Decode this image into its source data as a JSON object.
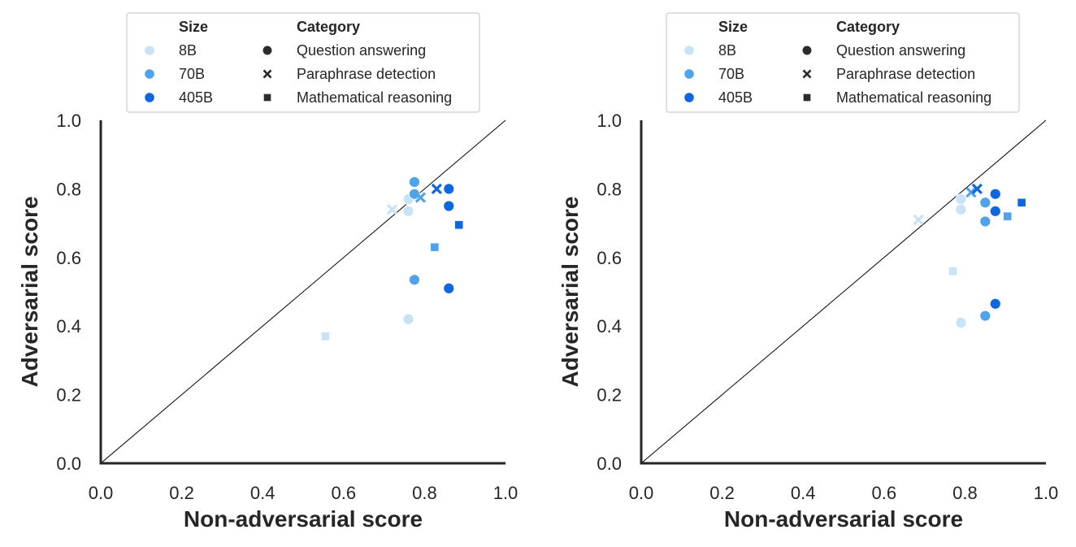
{
  "colors": {
    "8B": "#c6e3f7",
    "70B": "#4ea3ec",
    "405B": "#0e66e0",
    "legend_shape": "#2b2b2b"
  },
  "legend": {
    "size_title": "Size",
    "category_title": "Category",
    "sizes": [
      "8B",
      "70B",
      "405B"
    ],
    "categories": [
      {
        "label": "Question answering",
        "marker": "circle"
      },
      {
        "label": "Paraphrase detection",
        "marker": "x"
      },
      {
        "label": "Mathematical reasoning",
        "marker": "square"
      }
    ]
  },
  "chart_data": [
    {
      "type": "scatter",
      "xlabel": "Non-adversarial score",
      "ylabel": "Adversarial score",
      "xlim": [
        0.0,
        1.0
      ],
      "ylim": [
        0.0,
        1.0
      ],
      "xticks": [
        "0.0",
        "0.2",
        "0.4",
        "0.6",
        "0.8",
        "1.0"
      ],
      "yticks": [
        "0.0",
        "0.2",
        "0.4",
        "0.6",
        "0.8",
        "1.0"
      ],
      "reference_line": "y = x",
      "grid": false,
      "legend_position": "top",
      "points": [
        {
          "size": "8B",
          "category": "Question answering",
          "x": 0.76,
          "y": 0.77
        },
        {
          "size": "8B",
          "category": "Question answering",
          "x": 0.76,
          "y": 0.735
        },
        {
          "size": "8B",
          "category": "Question answering",
          "x": 0.76,
          "y": 0.42
        },
        {
          "size": "8B",
          "category": "Paraphrase detection",
          "x": 0.72,
          "y": 0.74
        },
        {
          "size": "8B",
          "category": "Mathematical reasoning",
          "x": 0.555,
          "y": 0.37
        },
        {
          "size": "70B",
          "category": "Question answering",
          "x": 0.775,
          "y": 0.82
        },
        {
          "size": "70B",
          "category": "Question answering",
          "x": 0.775,
          "y": 0.785
        },
        {
          "size": "70B",
          "category": "Question answering",
          "x": 0.775,
          "y": 0.535
        },
        {
          "size": "70B",
          "category": "Paraphrase detection",
          "x": 0.79,
          "y": 0.775
        },
        {
          "size": "70B",
          "category": "Mathematical reasoning",
          "x": 0.825,
          "y": 0.63
        },
        {
          "size": "405B",
          "category": "Question answering",
          "x": 0.86,
          "y": 0.8
        },
        {
          "size": "405B",
          "category": "Question answering",
          "x": 0.86,
          "y": 0.75
        },
        {
          "size": "405B",
          "category": "Question answering",
          "x": 0.86,
          "y": 0.51
        },
        {
          "size": "405B",
          "category": "Paraphrase detection",
          "x": 0.83,
          "y": 0.8
        },
        {
          "size": "405B",
          "category": "Mathematical reasoning",
          "x": 0.885,
          "y": 0.695
        }
      ]
    },
    {
      "type": "scatter",
      "xlabel": "Non-adversarial score",
      "ylabel": "Adversarial score",
      "xlim": [
        0.0,
        1.0
      ],
      "ylim": [
        0.0,
        1.0
      ],
      "xticks": [
        "0.0",
        "0.2",
        "0.4",
        "0.6",
        "0.8",
        "1.0"
      ],
      "yticks": [
        "0.0",
        "0.2",
        "0.4",
        "0.6",
        "0.8",
        "1.0"
      ],
      "reference_line": "y = x",
      "grid": false,
      "legend_position": "top",
      "points": [
        {
          "size": "8B",
          "category": "Question answering",
          "x": 0.79,
          "y": 0.77
        },
        {
          "size": "8B",
          "category": "Question answering",
          "x": 0.79,
          "y": 0.74
        },
        {
          "size": "8B",
          "category": "Question answering",
          "x": 0.79,
          "y": 0.41
        },
        {
          "size": "8B",
          "category": "Paraphrase detection",
          "x": 0.685,
          "y": 0.71
        },
        {
          "size": "8B",
          "category": "Mathematical reasoning",
          "x": 0.77,
          "y": 0.56
        },
        {
          "size": "70B",
          "category": "Question answering",
          "x": 0.85,
          "y": 0.76
        },
        {
          "size": "70B",
          "category": "Question answering",
          "x": 0.85,
          "y": 0.705
        },
        {
          "size": "70B",
          "category": "Question answering",
          "x": 0.85,
          "y": 0.43
        },
        {
          "size": "70B",
          "category": "Paraphrase detection",
          "x": 0.815,
          "y": 0.79
        },
        {
          "size": "70B",
          "category": "Mathematical reasoning",
          "x": 0.905,
          "y": 0.72
        },
        {
          "size": "405B",
          "category": "Question answering",
          "x": 0.875,
          "y": 0.785
        },
        {
          "size": "405B",
          "category": "Question answering",
          "x": 0.875,
          "y": 0.735
        },
        {
          "size": "405B",
          "category": "Question answering",
          "x": 0.875,
          "y": 0.465
        },
        {
          "size": "405B",
          "category": "Paraphrase detection",
          "x": 0.83,
          "y": 0.8
        },
        {
          "size": "405B",
          "category": "Mathematical reasoning",
          "x": 0.94,
          "y": 0.76
        }
      ]
    }
  ]
}
